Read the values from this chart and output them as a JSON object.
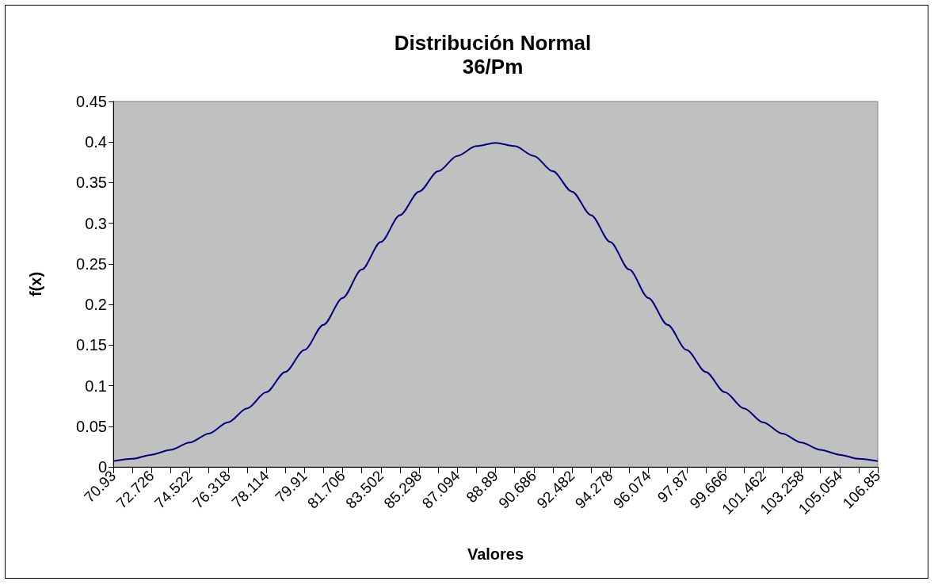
{
  "chart_data": {
    "type": "line",
    "title": "Distribución Normal",
    "subtitle": "36/Pm",
    "xlabel": "Valores",
    "ylabel": "f(x)",
    "categories": [
      "70.93",
      null,
      "72.726",
      null,
      "74.522",
      null,
      "76.318",
      null,
      "78.114",
      null,
      "79.91",
      null,
      "81.706",
      null,
      "83.502",
      null,
      "85.298",
      null,
      "87.094",
      null,
      "88.89",
      null,
      "90.686",
      null,
      "92.482",
      null,
      "94.278",
      null,
      "96.074",
      null,
      "97.87",
      null,
      "99.666",
      null,
      "101.462",
      null,
      "103.258",
      null,
      "105.054",
      null,
      "106.85"
    ],
    "series": [
      {
        "color": "#000080",
        "values": [
          0.007,
          0.01,
          0.015,
          0.021,
          0.03,
          0.041,
          0.055,
          0.072,
          0.092,
          0.117,
          0.144,
          0.175,
          0.208,
          0.243,
          0.277,
          0.31,
          0.339,
          0.364,
          0.383,
          0.395,
          0.399,
          0.395,
          0.383,
          0.364,
          0.339,
          0.31,
          0.277,
          0.243,
          0.208,
          0.175,
          0.144,
          0.117,
          0.092,
          0.072,
          0.055,
          0.041,
          0.03,
          0.021,
          0.015,
          0.01,
          0.007
        ]
      }
    ],
    "ylim": [
      0,
      0.45
    ],
    "yticks": [
      0,
      0.05,
      0.1,
      0.15,
      0.2,
      0.25,
      0.3,
      0.35,
      0.4,
      0.45
    ],
    "marker": "none",
    "line_style": "solid"
  }
}
